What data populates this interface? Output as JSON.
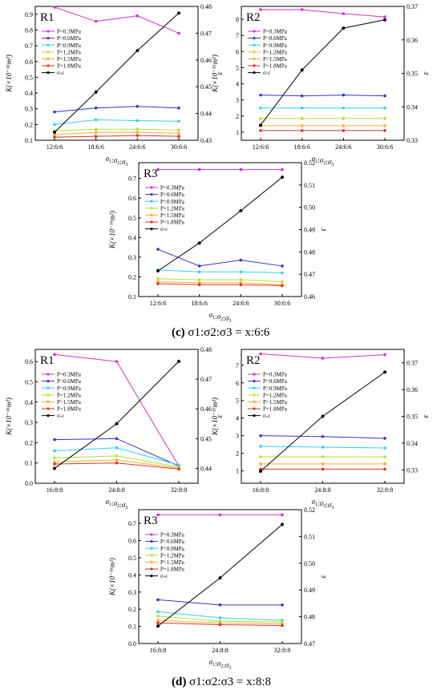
{
  "figure": {
    "caption_c": {
      "label": "(c)",
      "text": "σ1:σ2:σ3 = x:6:6"
    },
    "caption_d": {
      "label": "(d)",
      "text": "σ1:σ2:σ3 = x:8:8"
    }
  },
  "chart_data": [
    {
      "id": "c-R1",
      "type": "line",
      "title": "R1",
      "categories": [
        "12:6:6",
        "18:6:6",
        "24:6:6",
        "30:6:6"
      ],
      "xlabel": "σ1:σ2:σ3",
      "ylabel": "K(×10⁻¹⁶m²)",
      "y2label": "ε",
      "ylim": [
        0.1,
        0.95
      ],
      "yticks": [
        "0.1",
        "0.2",
        "0.3",
        "0.4",
        "0.5",
        "0.6",
        "0.7",
        "0.8",
        "0.9"
      ],
      "y2lim": [
        0.43,
        0.48
      ],
      "y2ticks": [
        "0.43",
        "0.44",
        "0.45",
        "0.46",
        "0.47",
        "0.48"
      ],
      "legend_position": "top-left",
      "series": [
        {
          "name": "P=0.3MPa",
          "color": "#cc33cc",
          "values": [
            0.945,
            0.855,
            0.89,
            0.78
          ]
        },
        {
          "name": "P=0.6MPa",
          "color": "#3333cc",
          "values": [
            0.28,
            0.305,
            0.315,
            0.305
          ]
        },
        {
          "name": "P=0.9MPa",
          "color": "#33ccff",
          "values": [
            0.2,
            0.23,
            0.225,
            0.22
          ]
        },
        {
          "name": "P=1.2MPa",
          "color": "#b3e033",
          "values": [
            0.16,
            0.17,
            0.17,
            0.165
          ]
        },
        {
          "name": "P=1.5MPa",
          "color": "#ffaa33",
          "values": [
            0.135,
            0.15,
            0.15,
            0.145
          ]
        },
        {
          "name": "P=1.8MPa",
          "color": "#dd3322",
          "values": [
            0.12,
            0.125,
            0.13,
            0.125
          ]
        }
      ],
      "eps_series": {
        "name": "σ-ε",
        "color": "#000000",
        "values": [
          0.433,
          0.448,
          0.4635,
          0.4775
        ]
      }
    },
    {
      "id": "c-R2",
      "type": "line",
      "title": "R2",
      "categories": [
        "12:6:6",
        "18:6:6",
        "24:6:6",
        "30:6:6"
      ],
      "xlabel": "σ1:σ2:σ3",
      "ylabel": "K(×10⁻¹⁶m²)",
      "y2label": "ε",
      "ylim": [
        0.5,
        8.8
      ],
      "yticks": [
        "1",
        "2",
        "3",
        "4",
        "5",
        "6",
        "7",
        "8"
      ],
      "y2lim": [
        0.33,
        0.37
      ],
      "y2ticks": [
        "0.33",
        "0.34",
        "0.35",
        "0.36",
        "0.37"
      ],
      "legend_position": "top-left",
      "series": [
        {
          "name": "P=0.3MPa",
          "color": "#cc33cc",
          "values": [
            8.6,
            8.6,
            8.35,
            8.15
          ]
        },
        {
          "name": "P=0.6MPa",
          "color": "#3333cc",
          "values": [
            3.3,
            3.25,
            3.3,
            3.25
          ]
        },
        {
          "name": "P=0.9MPa",
          "color": "#33ccff",
          "values": [
            2.5,
            2.5,
            2.5,
            2.5
          ]
        },
        {
          "name": "P=1.2MPa",
          "color": "#b3e033",
          "values": [
            1.85,
            1.85,
            1.85,
            1.85
          ]
        },
        {
          "name": "P=1.5MPa",
          "color": "#ffaa33",
          "values": [
            1.4,
            1.4,
            1.4,
            1.4
          ]
        },
        {
          "name": "P=1.8MPa",
          "color": "#dd3322",
          "values": [
            1.1,
            1.1,
            1.1,
            1.1
          ]
        }
      ],
      "eps_series": {
        "name": "σ-ε",
        "color": "#000000",
        "values": [
          0.3345,
          0.351,
          0.3635,
          0.366
        ]
      }
    },
    {
      "id": "c-R3",
      "type": "line",
      "title": "R3",
      "categories": [
        "12:6:6",
        "18:6:6",
        "24:6:6",
        "30:6:6"
      ],
      "xlabel": "σ1:σ2:σ3",
      "ylabel": "K(×10⁻¹⁶m²)",
      "y2label": "ε",
      "ylim": [
        0.1,
        0.78
      ],
      "yticks": [
        "0.1",
        "0.2",
        "0.3",
        "0.4",
        "0.5",
        "0.6",
        "0.7"
      ],
      "y2lim": [
        0.46,
        0.52
      ],
      "y2ticks": [
        "0.46",
        "0.47",
        "0.48",
        "0.49",
        "0.50",
        "0.51",
        "0.52"
      ],
      "legend_position": "top-left",
      "series": [
        {
          "name": "P=0.3MPa",
          "color": "#cc33cc",
          "values": [
            0.745,
            0.745,
            0.745,
            0.745
          ]
        },
        {
          "name": "P=0.6MPa",
          "color": "#3333cc",
          "values": [
            0.34,
            0.255,
            0.285,
            0.255
          ]
        },
        {
          "name": "P=0.9MPa",
          "color": "#33ccff",
          "values": [
            0.235,
            0.225,
            0.225,
            0.22
          ]
        },
        {
          "name": "P=1.2MPa",
          "color": "#b3e033",
          "values": [
            0.19,
            0.185,
            0.185,
            0.175
          ]
        },
        {
          "name": "P=1.5MPa",
          "color": "#ffaa33",
          "values": [
            0.175,
            0.17,
            0.17,
            0.16
          ]
        },
        {
          "name": "P=1.8MPa",
          "color": "#dd3322",
          "values": [
            0.165,
            0.16,
            0.16,
            0.155
          ]
        }
      ],
      "eps_series": {
        "name": "σ-ε",
        "color": "#000000",
        "values": [
          0.4715,
          0.484,
          0.4985,
          0.5135
        ]
      }
    },
    {
      "id": "d-R1",
      "type": "line",
      "title": "R1",
      "categories": [
        "16:8:8",
        "24:8:8",
        "32:8:8"
      ],
      "xlabel": "σ1:σ2:σ3",
      "ylabel": "K(×10⁻¹⁶m²)",
      "y2label": "ε",
      "ylim": [
        0.0,
        0.66
      ],
      "yticks": [
        "0.0",
        "0.1",
        "0.2",
        "0.3",
        "0.4",
        "0.5",
        "0.6"
      ],
      "y2lim": [
        0.435,
        0.48
      ],
      "y2ticks": [
        "0.44",
        "0.45",
        "0.46",
        "0.47",
        "0.48"
      ],
      "legend_position": "top-left",
      "series": [
        {
          "name": "P=0.3MPa",
          "color": "#cc33cc",
          "values": [
            0.635,
            0.6,
            0.085
          ]
        },
        {
          "name": "P=0.6MPa",
          "color": "#3333cc",
          "values": [
            0.215,
            0.22,
            0.085
          ]
        },
        {
          "name": "P=0.9MPa",
          "color": "#33ccff",
          "values": [
            0.16,
            0.175,
            0.09
          ]
        },
        {
          "name": "P=1.2MPa",
          "color": "#b3e033",
          "values": [
            0.125,
            0.135,
            0.08
          ]
        },
        {
          "name": "P=1.5MPa",
          "color": "#ffaa33",
          "values": [
            0.105,
            0.115,
            0.075
          ]
        },
        {
          "name": "P=1.8MPa",
          "color": "#dd3322",
          "values": [
            0.095,
            0.1,
            0.07
          ]
        }
      ],
      "eps_series": {
        "name": "σ-ε",
        "color": "#000000",
        "values": [
          0.44,
          0.455,
          0.476
        ]
      }
    },
    {
      "id": "d-R2",
      "type": "line",
      "title": "R2",
      "categories": [
        "16:8:8",
        "24:8:8",
        "32:8:8"
      ],
      "xlabel": "σ1:σ2:σ3",
      "ylabel": "K(×10⁻¹⁶m²)",
      "y2label": "ε",
      "ylim": [
        0.3,
        7.9
      ],
      "yticks": [
        "1",
        "2",
        "3",
        "4",
        "5",
        "6",
        "7"
      ],
      "y2lim": [
        0.325,
        0.375
      ],
      "y2ticks": [
        "0.33",
        "0.34",
        "0.35",
        "0.36",
        "0.37"
      ],
      "legend_position": "top-left",
      "series": [
        {
          "name": "P=0.3MPa",
          "color": "#cc33cc",
          "values": [
            7.65,
            7.4,
            7.6
          ]
        },
        {
          "name": "P=0.6MPa",
          "color": "#3333cc",
          "values": [
            3.0,
            2.95,
            2.85
          ]
        },
        {
          "name": "P=0.9MPa",
          "color": "#33ccff",
          "values": [
            2.4,
            2.35,
            2.3
          ]
        },
        {
          "name": "P=1.2MPa",
          "color": "#b3e033",
          "values": [
            1.8,
            1.8,
            1.8
          ]
        },
        {
          "name": "P=1.5MPa",
          "color": "#ffaa33",
          "values": [
            1.4,
            1.4,
            1.4
          ]
        },
        {
          "name": "P=1.8MPa",
          "color": "#dd3322",
          "values": [
            1.1,
            1.1,
            1.1
          ]
        }
      ],
      "eps_series": {
        "name": "σ-ε",
        "color": "#000000",
        "values": [
          0.3295,
          0.35,
          0.3665
        ]
      }
    },
    {
      "id": "d-R3",
      "type": "line",
      "title": "R3",
      "categories": [
        "16:8:8",
        "24:8:8",
        "32:8:8"
      ],
      "xlabel": "σ1:σ2:σ3",
      "ylabel": "K(×10⁻¹⁶m²)",
      "y2label": "ε",
      "ylim": [
        0.0,
        0.78
      ],
      "yticks": [
        "0.0",
        "0.1",
        "0.2",
        "0.3",
        "0.4",
        "0.5",
        "0.6",
        "0.7"
      ],
      "y2lim": [
        0.47,
        0.52
      ],
      "y2ticks": [
        "0.47",
        "0.48",
        "0.49",
        "0.50",
        "0.51",
        "0.52"
      ],
      "legend_position": "top-left",
      "series": [
        {
          "name": "P=0.3MPa",
          "color": "#cc33cc",
          "values": [
            0.75,
            0.75,
            0.75
          ]
        },
        {
          "name": "P=0.6MPa",
          "color": "#3333cc",
          "values": [
            0.255,
            0.225,
            0.225
          ]
        },
        {
          "name": "P=0.9MPa",
          "color": "#33ccff",
          "values": [
            0.185,
            0.15,
            0.135
          ]
        },
        {
          "name": "P=1.2MPa",
          "color": "#b3e033",
          "values": [
            0.16,
            0.13,
            0.125
          ]
        },
        {
          "name": "P=1.5MPa",
          "color": "#ffaa33",
          "values": [
            0.135,
            0.12,
            0.115
          ]
        },
        {
          "name": "P=1.8MPa",
          "color": "#dd3322",
          "values": [
            0.12,
            0.11,
            0.105
          ]
        }
      ],
      "eps_series": {
        "name": "σ-ε",
        "color": "#000000",
        "values": [
          0.4765,
          0.4945,
          0.5145
        ]
      }
    }
  ]
}
